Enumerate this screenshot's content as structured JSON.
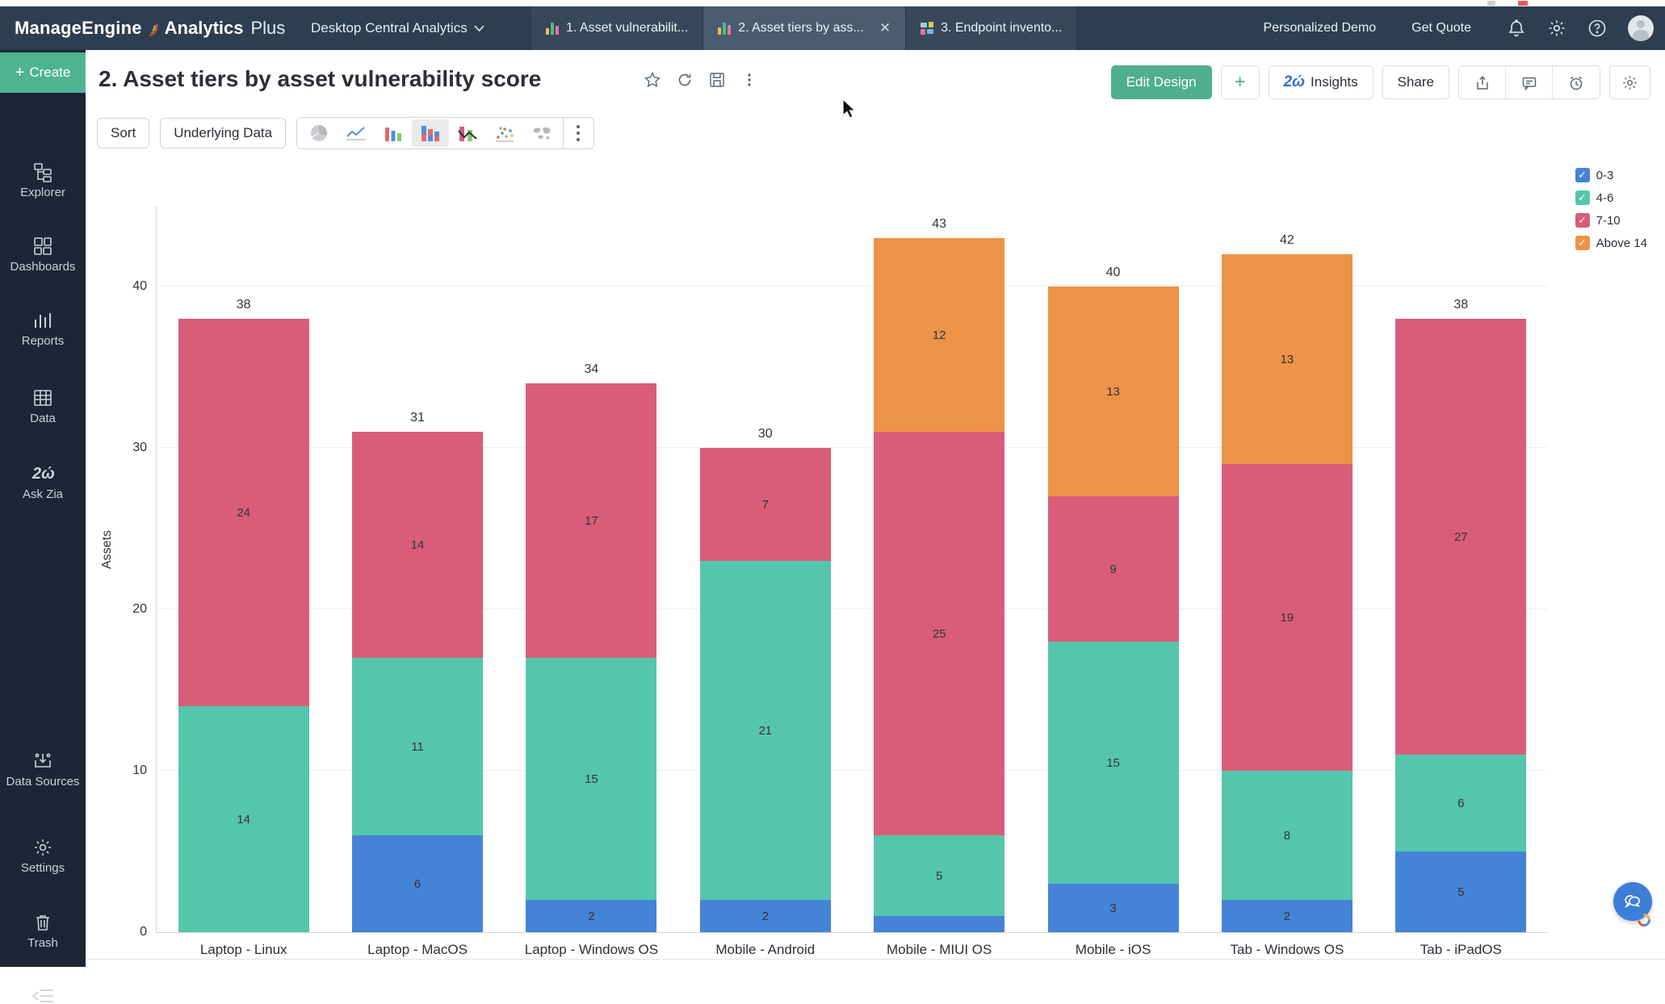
{
  "topbar": {
    "brand": {
      "part1": "ManageEngine",
      "part2": "Analytics",
      "part3": "Plus"
    },
    "workspace": "Desktop Central Analytics",
    "tabs": [
      {
        "label": "1. Asset vulnerabilit..."
      },
      {
        "label": "2. Asset tiers by ass..."
      },
      {
        "label": "3. Endpoint invento..."
      }
    ],
    "links": {
      "demo": "Personalized Demo",
      "quote": "Get Quote"
    }
  },
  "sidebar": {
    "create_label": "Create",
    "items": [
      {
        "label": "Explorer"
      },
      {
        "label": "Dashboards"
      },
      {
        "label": "Reports"
      },
      {
        "label": "Data"
      },
      {
        "label": "Ask Zia"
      },
      {
        "label": "Data Sources"
      },
      {
        "label": "Settings"
      },
      {
        "label": "Trash"
      }
    ]
  },
  "report_header": {
    "title": "2. Asset tiers by asset vulnerability score",
    "edit_design": "Edit Design",
    "plus": "+",
    "insights": "Insights",
    "share": "Share"
  },
  "toolbar": {
    "sort": "Sort",
    "underlying_data": "Underlying Data"
  },
  "chart_data": {
    "type": "bar",
    "subtype": "stacked",
    "title": "2. Asset tiers by asset vulnerability score",
    "ylabel": "Assets",
    "xlabel": "",
    "ylim": [
      0,
      45
    ],
    "yticks": [
      0,
      10,
      20,
      30,
      40
    ],
    "grid": true,
    "legend_position": "top-right",
    "categories": [
      "Laptop - Linux",
      "Laptop - MacOS",
      "Laptop - Windows OS",
      "Mobile - Android",
      "Mobile - MIUI OS",
      "Mobile - iOS",
      "Tab - Windows OS",
      "Tab - iPadOS"
    ],
    "series": [
      {
        "name": "0-3",
        "color": "#4583d6",
        "values": [
          0,
          6,
          2,
          2,
          1,
          3,
          2,
          5
        ]
      },
      {
        "name": "4-6",
        "color": "#55c6ac",
        "values": [
          14,
          11,
          15,
          21,
          5,
          15,
          8,
          6
        ]
      },
      {
        "name": "7-10",
        "color": "#d95d78",
        "values": [
          24,
          14,
          17,
          7,
          25,
          9,
          19,
          27
        ]
      },
      {
        "name": "Above 14",
        "color": "#ed9347",
        "values": [
          0,
          0,
          0,
          0,
          12,
          13,
          13,
          0
        ]
      }
    ],
    "totals": [
      38,
      31,
      34,
      30,
      43,
      40,
      42,
      38
    ],
    "label_min_value": 2
  }
}
